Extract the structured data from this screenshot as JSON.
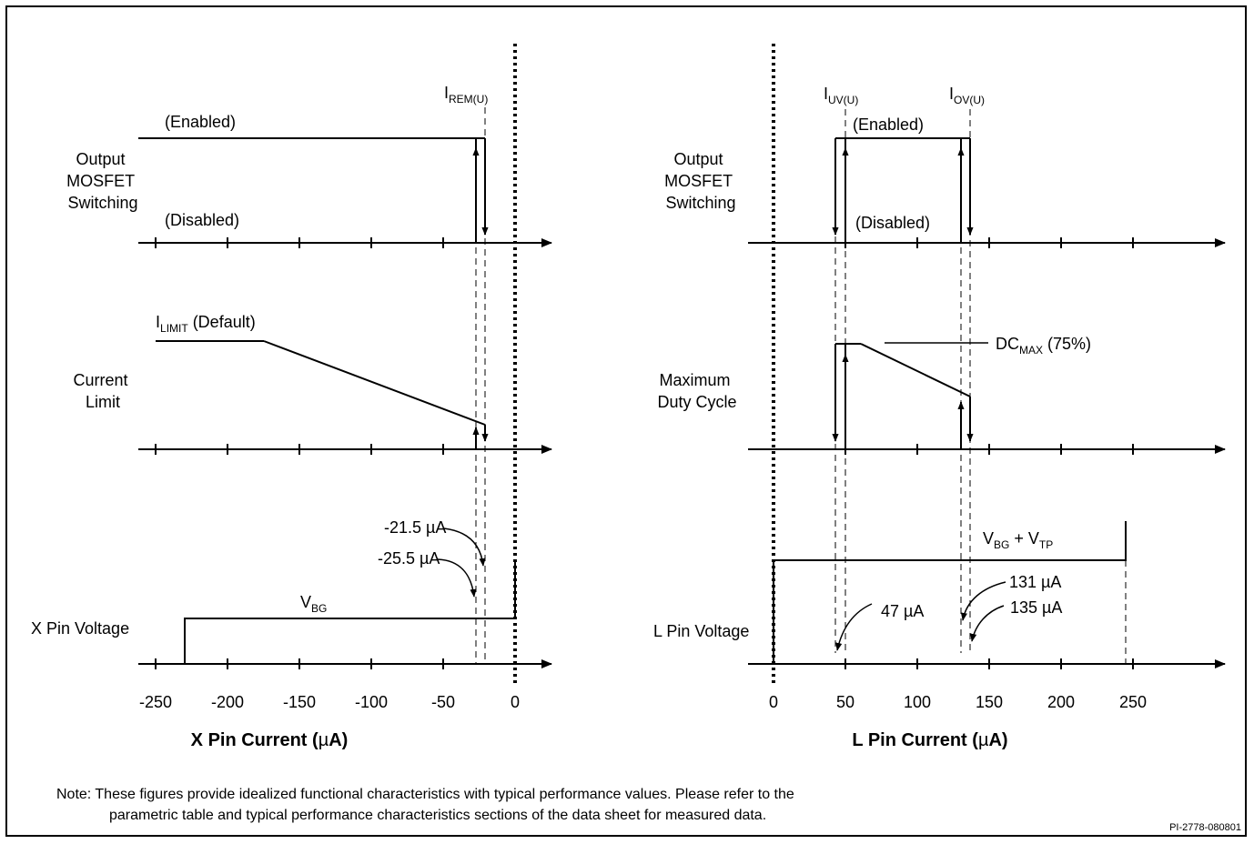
{
  "left_panel": {
    "rows": [
      {
        "label_lines": [
          "Output",
          "MOSFET",
          "Switching"
        ]
      },
      {
        "label_lines": [
          "Current",
          "Limit"
        ]
      },
      {
        "label_lines": [
          "X Pin Voltage"
        ]
      }
    ],
    "state_labels": {
      "enabled": "(Enabled)",
      "disabled": "(Disabled)"
    },
    "threshold": {
      "main": "I",
      "sub": "REM(U)"
    },
    "limit_label": {
      "main": "I",
      "sub": "LIMIT",
      "suffix": " (Default)"
    },
    "voltage_label": {
      "main": "V",
      "sub": "BG"
    },
    "callouts": [
      "-21.5 µA",
      "-25.5 µA"
    ],
    "tick_labels": [
      "-250",
      "-200",
      "-150",
      "-100",
      "-50",
      "0"
    ],
    "xlabel": {
      "pre": "X Pin Current (",
      "mu": "µ",
      "post": "A)"
    }
  },
  "right_panel": {
    "rows": [
      {
        "label_lines": [
          "Output",
          "MOSFET",
          "Switching"
        ]
      },
      {
        "label_lines": [
          "Maximum",
          "Duty Cycle"
        ]
      },
      {
        "label_lines": [
          "L Pin Voltage"
        ]
      }
    ],
    "state_labels": {
      "enabled": "(Enabled)",
      "disabled": "(Disabled)"
    },
    "threshold_uv": {
      "main": "I",
      "sub": "UV(U)"
    },
    "threshold_ov": {
      "main": "I",
      "sub": "OV(U)"
    },
    "dc_label": {
      "main": "DC",
      "sub": "MAX",
      "suffix": " (75%)"
    },
    "voltage_label": {
      "v1": "V",
      "s1": "BG",
      "mid": " + V",
      "s2": "TP"
    },
    "callouts": [
      "47 µA",
      "131 µA",
      "135 µA"
    ],
    "tick_labels": [
      "0",
      "50",
      "100",
      "150",
      "200",
      "250"
    ],
    "xlabel": {
      "pre": "L Pin Current (",
      "mu": "µ",
      "post": "A)"
    }
  },
  "note": {
    "line1": "Note: These figures provide idealized functional characteristics with typical performance values. Please refer to the",
    "line2": "parametric table and typical performance characteristics sections of the data sheet for measured data."
  },
  "figure_id": "PI-2778-080801"
}
